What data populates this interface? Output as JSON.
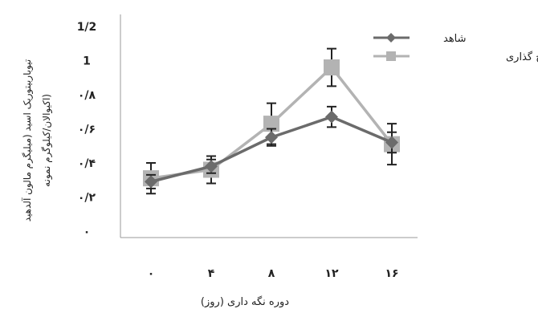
{
  "chart_data": {
    "type": "line",
    "title": "",
    "xlabel": "دوره نگه داری (روز)",
    "ylabel": "تیوباربیتوریک اسید (میلیگرم مالون آلدهید",
    "ylabel2": "اکیوالان/کیلوگرم نمونه)",
    "x": [
      0,
      4,
      8,
      12,
      16
    ],
    "x_tick_labels": [
      "۰",
      "۴",
      "۸",
      "۱۲",
      "۱۶"
    ],
    "y_tick_labels": [
      "۰",
      "۰/۲",
      "۰/۴",
      "۰/۶",
      "۰/۸",
      "1",
      "1/2"
    ],
    "y_tick_values": [
      0,
      0.2,
      0.4,
      0.6,
      0.8,
      1.0,
      1.2
    ],
    "ylim": [
      0,
      1.2
    ],
    "xlim": [
      0,
      16
    ],
    "grid": false,
    "legend_position": "top-right",
    "series": [
      {
        "name": "شاهد",
        "values": [
          0.29,
          0.38,
          0.55,
          0.67,
          0.52
        ],
        "errors": [
          0.04,
          0.04,
          0.05,
          0.06,
          0.06
        ],
        "color": "#6b6b6b",
        "marker": "diamond"
      },
      {
        "name": "تاخیر در یخ گذاری",
        "values": [
          0.31,
          0.36,
          0.63,
          0.96,
          0.51
        ],
        "errors": [
          0.09,
          0.08,
          0.12,
          0.11,
          0.12
        ],
        "color": "#b3b3b3",
        "marker": "square"
      }
    ]
  }
}
